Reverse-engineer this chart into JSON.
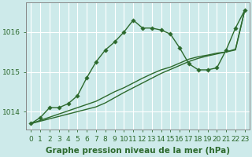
{
  "xlabel": "Graphe pression niveau de la mer (hPa)",
  "background_color": "#cdeaea",
  "plot_bg_color": "#cdeaea",
  "grid_color": "#ffffff",
  "line_color": "#2d6a2d",
  "x": [
    0,
    1,
    2,
    3,
    4,
    5,
    6,
    7,
    8,
    9,
    10,
    11,
    12,
    13,
    14,
    15,
    16,
    17,
    18,
    19,
    20,
    21,
    22,
    23
  ],
  "series1": [
    1013.7,
    1013.85,
    1014.1,
    1014.1,
    1014.2,
    1014.4,
    1014.85,
    1015.25,
    1015.55,
    1015.75,
    1016.0,
    1016.3,
    1016.1,
    1016.1,
    1016.05,
    1015.95,
    1015.6,
    1015.2,
    1015.05,
    1015.05,
    1015.1,
    1015.55,
    1016.1,
    1016.55
  ],
  "series2": [
    1013.7,
    1013.78,
    1013.86,
    1013.94,
    1014.02,
    1014.1,
    1014.18,
    1014.26,
    1014.38,
    1014.5,
    1014.6,
    1014.72,
    1014.84,
    1014.95,
    1015.05,
    1015.12,
    1015.22,
    1015.32,
    1015.38,
    1015.42,
    1015.47,
    1015.5,
    1015.55,
    1016.55
  ],
  "series3": [
    1013.7,
    1013.76,
    1013.82,
    1013.88,
    1013.94,
    1014.0,
    1014.06,
    1014.12,
    1014.22,
    1014.35,
    1014.48,
    1014.6,
    1014.72,
    1014.84,
    1014.96,
    1015.06,
    1015.16,
    1015.26,
    1015.34,
    1015.4,
    1015.45,
    1015.5,
    1015.57,
    1016.55
  ],
  "ylim": [
    1013.55,
    1016.75
  ],
  "yticks": [
    1014,
    1015,
    1016
  ],
  "xticks": [
    0,
    1,
    2,
    3,
    4,
    5,
    6,
    7,
    8,
    9,
    10,
    11,
    12,
    13,
    14,
    15,
    16,
    17,
    18,
    19,
    20,
    21,
    22,
    23
  ],
  "marker_size": 2.8,
  "line_width": 1.0,
  "xlabel_fontsize": 7.5,
  "tick_fontsize": 6.5
}
